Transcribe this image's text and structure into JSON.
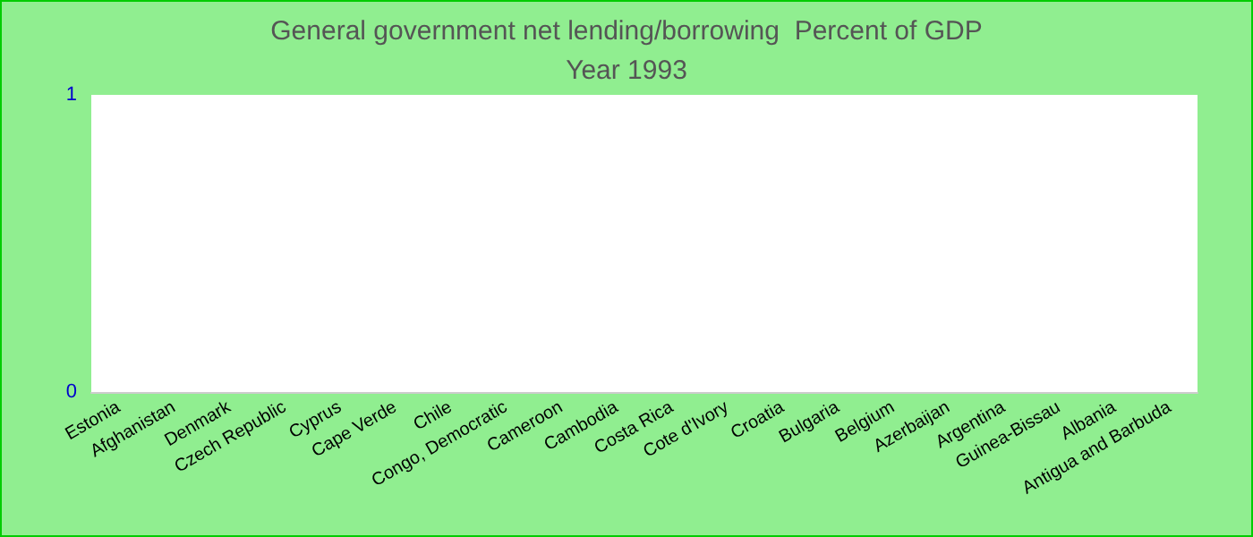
{
  "chart_data": {
    "type": "bar",
    "title": "General government net lending/borrowing  Percent of GDP",
    "subtitle": "Year 1993",
    "categories": [
      "Estonia",
      "Afghanistan",
      "Denmark",
      "Czech Republic",
      "Cyprus",
      "Cape Verde",
      "Chile",
      "Congo, Democratic",
      "Cameroon",
      "Cambodia",
      "Costa Rica",
      "Cote d'Ivory",
      "Croatia",
      "Bulgaria",
      "Belgium",
      "Azerbaijan",
      "Argentina",
      "Guinea-Bissau",
      "Albania",
      "Antigua and Barbuda"
    ],
    "values": [
      null,
      null,
      null,
      null,
      null,
      null,
      null,
      null,
      null,
      null,
      null,
      null,
      null,
      null,
      null,
      null,
      null,
      null,
      null,
      null
    ],
    "ylim": [
      0,
      1
    ],
    "yticks": [
      0,
      1
    ]
  }
}
